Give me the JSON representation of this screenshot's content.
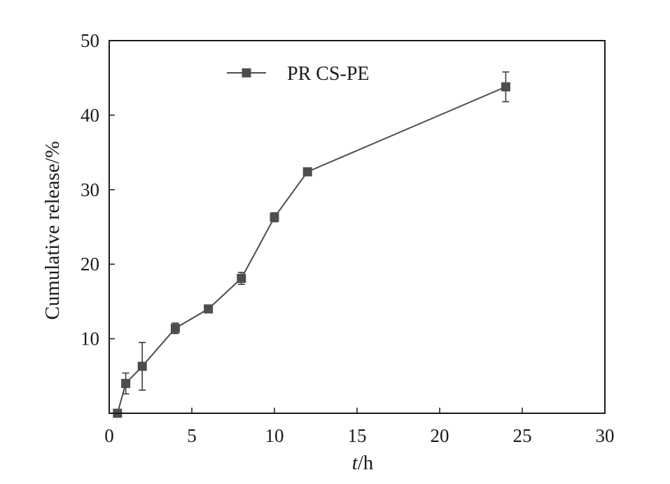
{
  "chart_data": {
    "type": "line",
    "title": "",
    "xlabel_italic": "t",
    "xlabel_unit": "/h",
    "ylabel": "Cumulative release/%",
    "xlim": [
      0,
      30
    ],
    "ylim": [
      0,
      50
    ],
    "xticks": [
      0,
      5,
      10,
      15,
      20,
      25,
      30
    ],
    "yticks": [
      10,
      20,
      30,
      40,
      50
    ],
    "y_origin_label": "0",
    "grid": false,
    "legend_position": "top-left",
    "series": [
      {
        "name": "PR CS-PE",
        "color": "#4d4d4d",
        "marker": "square",
        "x": [
          0.5,
          1,
          2,
          4,
          6,
          8,
          10,
          12,
          24
        ],
        "y": [
          0,
          4.0,
          6.3,
          11.4,
          14.0,
          18.1,
          26.3,
          32.4,
          43.8
        ],
        "error": [
          0,
          1.4,
          3.2,
          0.7,
          0,
          0.8,
          0.6,
          0.5,
          2.0
        ]
      }
    ]
  }
}
